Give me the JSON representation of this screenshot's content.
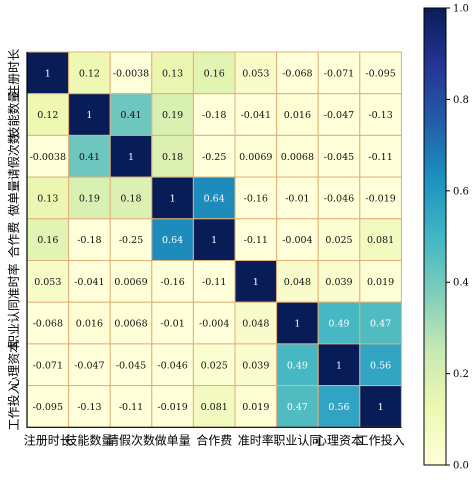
{
  "chart_data": {
    "type": "heatmap",
    "title": "",
    "xlabel": "",
    "ylabel": "",
    "row_labels": [
      "注册时长",
      "技能数量",
      "请假次数",
      "做单量",
      "合作费",
      "准时率",
      "职业认同",
      "心理资本",
      "工作投入"
    ],
    "col_labels": [
      "注册时长",
      "技能数量",
      "请假次数",
      "做单量",
      "合作费",
      "准时率",
      "职业认同",
      "心理资本",
      "工作投入"
    ],
    "values": [
      [
        1,
        0.12,
        -0.0038,
        0.13,
        0.16,
        0.053,
        -0.068,
        -0.071,
        -0.095
      ],
      [
        0.12,
        1,
        0.41,
        0.19,
        -0.18,
        -0.041,
        0.016,
        -0.047,
        -0.13
      ],
      [
        -0.0038,
        0.41,
        1,
        0.18,
        -0.25,
        0.0069,
        0.0068,
        -0.045,
        -0.11
      ],
      [
        0.13,
        0.19,
        0.18,
        1,
        0.64,
        -0.16,
        -0.01,
        -0.046,
        -0.019
      ],
      [
        0.16,
        -0.18,
        -0.25,
        0.64,
        1,
        -0.11,
        -0.004,
        0.025,
        0.081
      ],
      [
        0.053,
        -0.041,
        0.0069,
        -0.16,
        -0.11,
        1,
        0.048,
        0.039,
        0.019
      ],
      [
        -0.068,
        0.016,
        0.0068,
        -0.01,
        -0.004,
        0.048,
        1,
        0.49,
        0.47
      ],
      [
        -0.071,
        -0.047,
        -0.045,
        -0.046,
        0.025,
        0.039,
        0.49,
        1,
        0.56
      ],
      [
        -0.095,
        -0.13,
        -0.11,
        -0.019,
        0.081,
        0.019,
        0.47,
        0.56,
        1
      ]
    ],
    "value_labels": [
      [
        "1",
        "0.12",
        "-0.0038",
        "0.13",
        "0.16",
        "0.053",
        "-0.068",
        "-0.071",
        "-0.095"
      ],
      [
        "0.12",
        "1",
        "0.41",
        "0.19",
        "-0.18",
        "-0.041",
        "0.016",
        "-0.047",
        "-0.13"
      ],
      [
        "-0.0038",
        "0.41",
        "1",
        "0.18",
        "-0.25",
        "0.0069",
        "0.0068",
        "-0.045",
        "-0.11"
      ],
      [
        "0.13",
        "0.19",
        "0.18",
        "1",
        "0.64",
        "-0.16",
        "-0.01",
        "-0.046",
        "-0.019"
      ],
      [
        "0.16",
        "-0.18",
        "-0.25",
        "0.64",
        "1",
        "-0.11",
        "-0.004",
        "0.025",
        "0.081"
      ],
      [
        "0.053",
        "-0.041",
        "0.0069",
        "-0.16",
        "-0.11",
        "1",
        "0.048",
        "0.039",
        "0.019"
      ],
      [
        "-0.068",
        "0.016",
        "0.0068",
        "-0.01",
        "-0.004",
        "0.048",
        "1",
        "0.49",
        "0.47"
      ],
      [
        "-0.071",
        "-0.047",
        "-0.045",
        "-0.046",
        "0.025",
        "0.039",
        "0.49",
        "1",
        "0.56"
      ],
      [
        "-0.095",
        "-0.13",
        "-0.11",
        "-0.019",
        "0.081",
        "0.019",
        "0.47",
        "0.56",
        "1"
      ]
    ],
    "colorbar": {
      "range": [
        0.0,
        1.0
      ],
      "ticks": [
        "0.0",
        "0.2",
        "0.4",
        "0.6",
        "0.8",
        "1.0"
      ],
      "placement": "right"
    },
    "colormap": "YlGnBu",
    "grid": true,
    "grid_color": "#e0b07a",
    "axis_line_color": "#000000"
  }
}
